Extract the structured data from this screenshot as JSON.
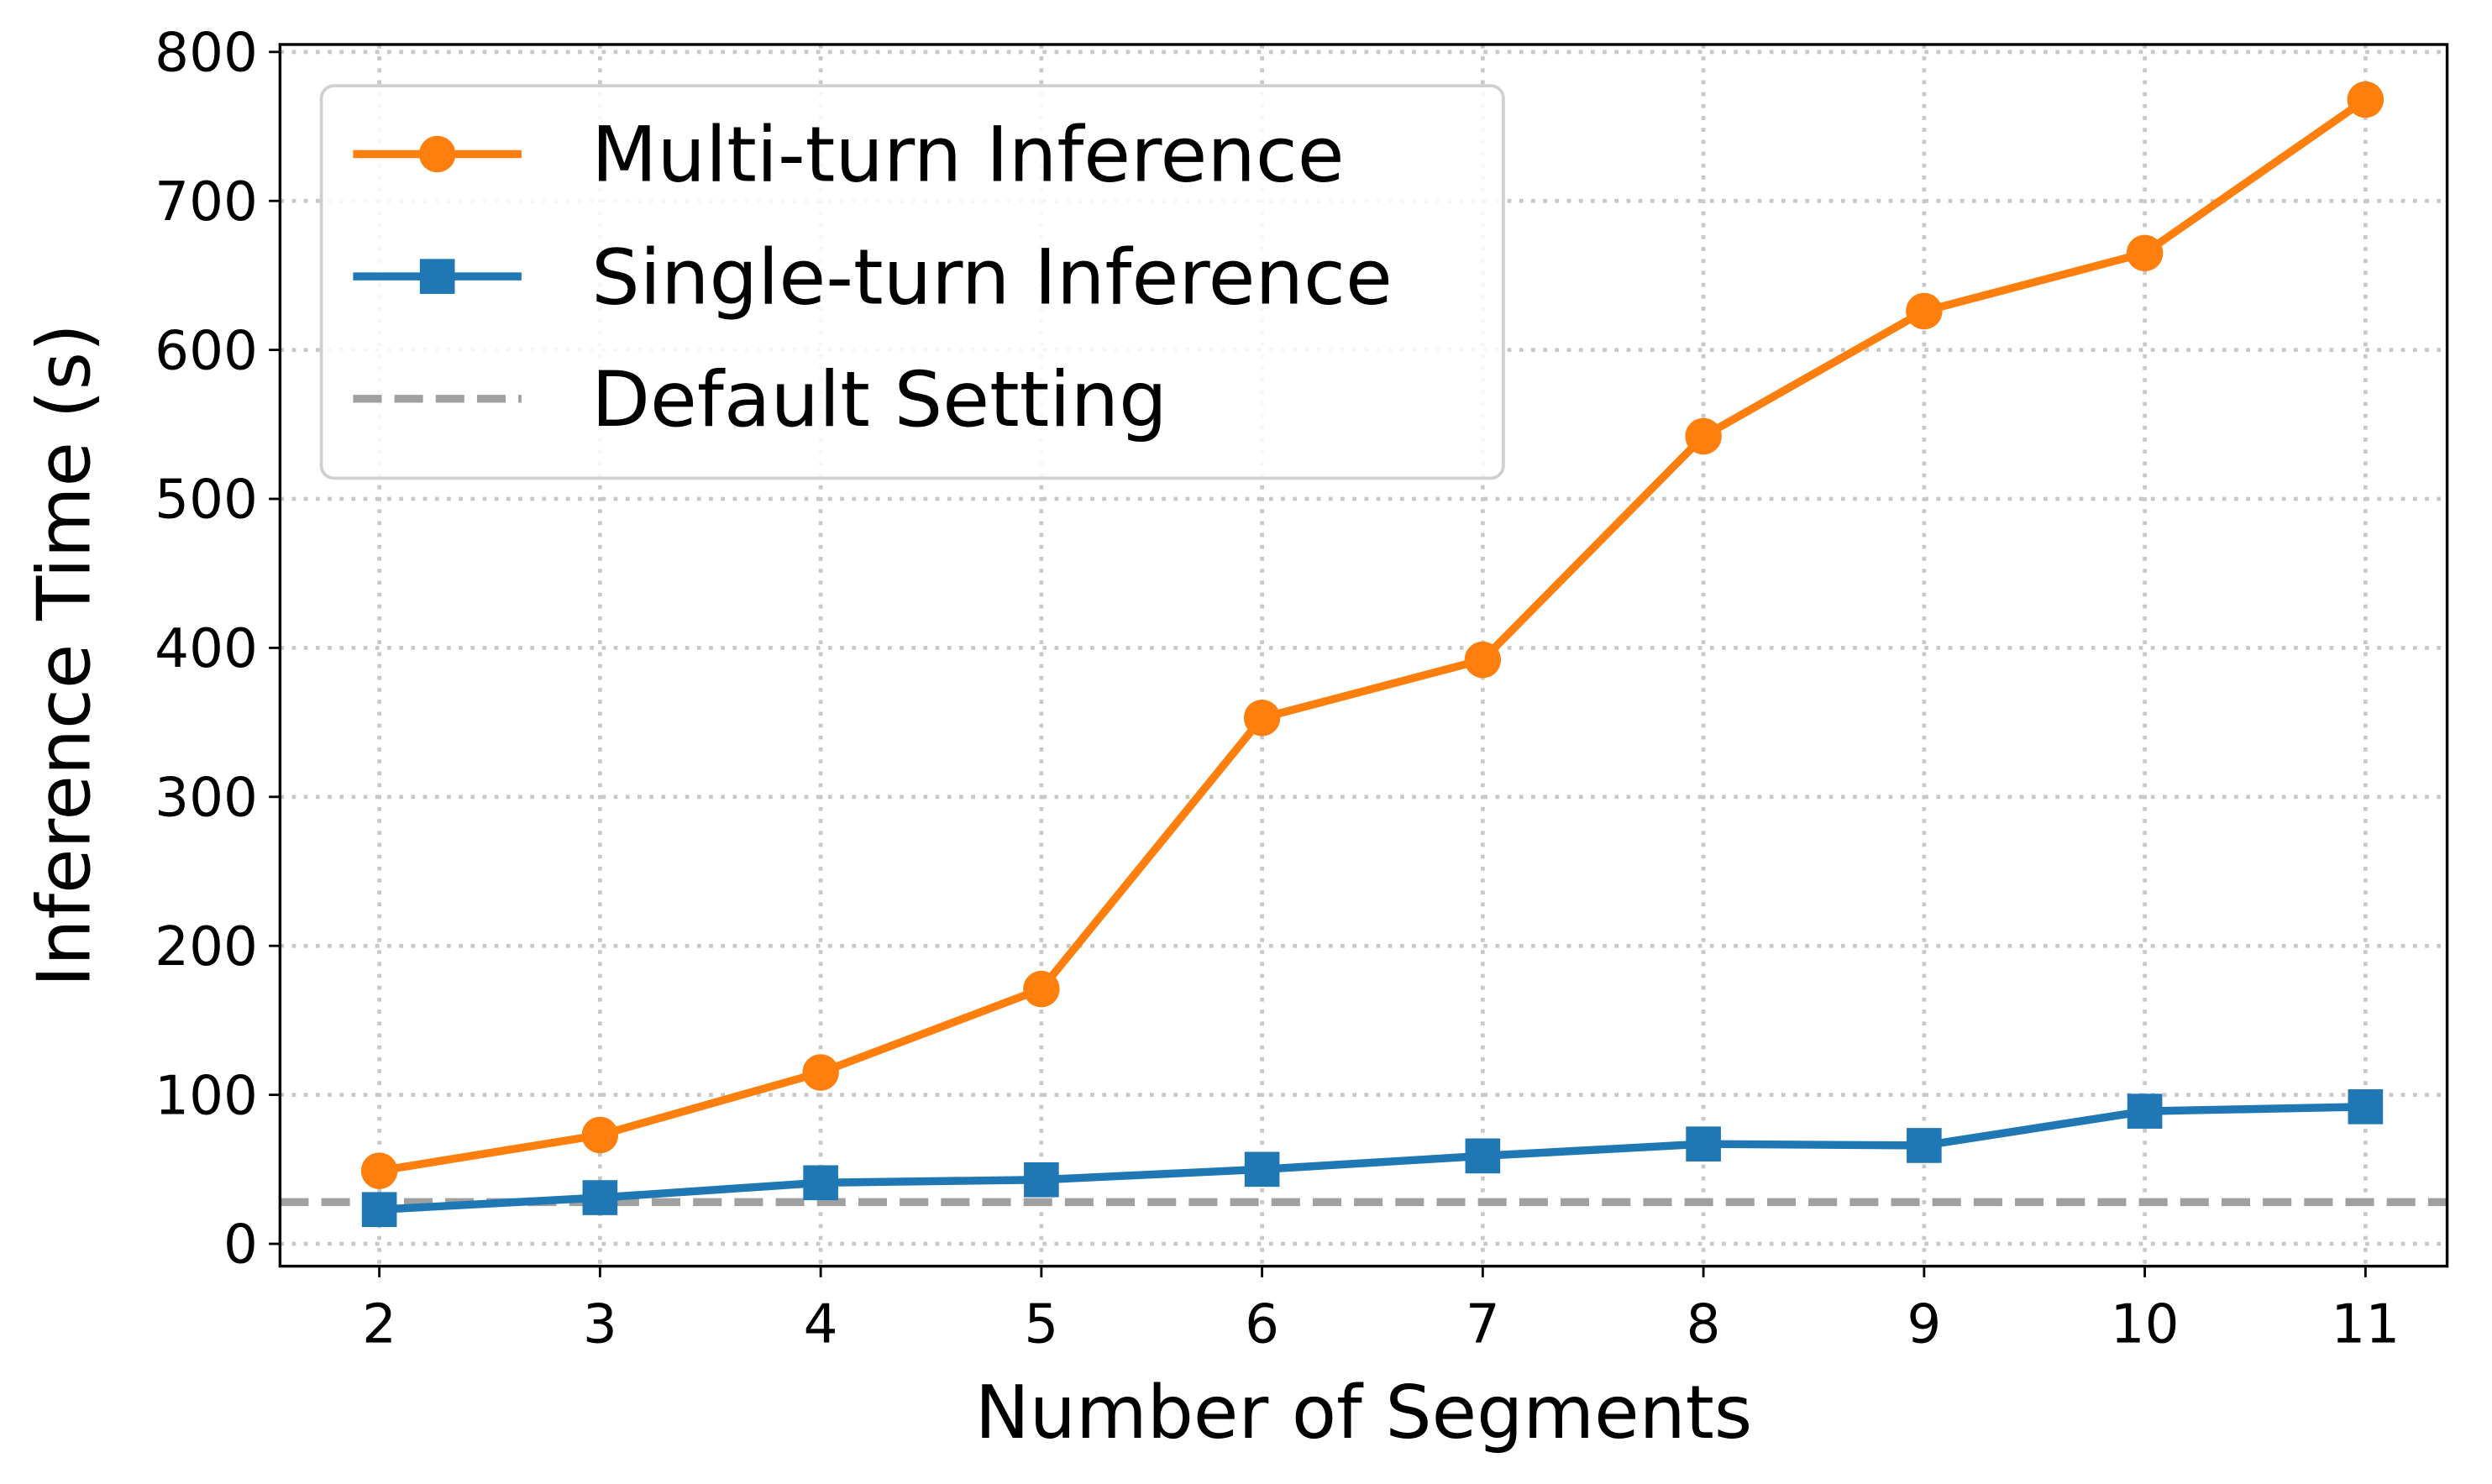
{
  "chart_data": {
    "type": "line",
    "x_label": "Number of Segments",
    "y_label": "Inference Time (s)",
    "x": [
      2,
      3,
      4,
      5,
      6,
      7,
      8,
      9,
      10,
      11
    ],
    "series": [
      {
        "name": "Multi-turn Inference",
        "color": "#ff7f0e",
        "marker": "circle",
        "values": [
          49,
          73,
          115,
          171,
          353,
          392,
          542,
          626,
          665,
          768
        ]
      },
      {
        "name": "Single-turn Inference",
        "color": "#1f77b4",
        "marker": "square",
        "values": [
          23,
          31,
          41,
          43,
          50,
          59,
          67,
          66,
          89,
          92
        ]
      }
    ],
    "reference_line": {
      "name": "Default Setting",
      "value": 28,
      "color": "#a0a0a0"
    },
    "xlim": [
      1.55,
      11.37
    ],
    "ylim": [
      -15,
      805
    ],
    "xticks": [
      2,
      3,
      4,
      5,
      6,
      7,
      8,
      9,
      10,
      11
    ],
    "yticks": [
      0,
      100,
      200,
      300,
      400,
      500,
      600,
      700,
      800
    ],
    "grid": true,
    "legend": "upper-left"
  }
}
